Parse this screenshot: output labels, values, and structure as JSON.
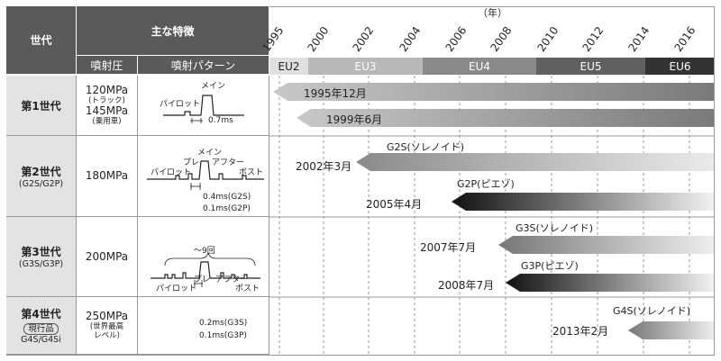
{
  "header": {
    "generation": "世代",
    "main_features": "主な特徴",
    "injection_pressure": "噴射圧",
    "injection_pattern": "噴射パターン",
    "year_unit": "（年）"
  },
  "years": [
    "1995",
    "2000",
    "2002",
    "2004",
    "2006",
    "2008",
    "2010",
    "2012",
    "2014",
    "2016"
  ],
  "eu": [
    {
      "label": "EU2",
      "color": "#e0e0e0",
      "text": "#222"
    },
    {
      "label": "EU3",
      "color": "#b8b8b8",
      "text": "#fff"
    },
    {
      "label": "EU4",
      "color": "#8a8a8a",
      "text": "#fff"
    },
    {
      "label": "EU5",
      "color": "#606060",
      "text": "#fff"
    },
    {
      "label": "EU6",
      "color": "#333333",
      "text": "#fff"
    }
  ],
  "generations": [
    {
      "title": "第1世代",
      "sub": "",
      "pressure1": "120MPa",
      "pressure1_note": "(トラック)",
      "pressure2": "145MPa",
      "pressure2_note": "(乗用車)"
    },
    {
      "title": "第2世代",
      "sub": "(G2S/G2P)",
      "pressure1": "180MPa"
    },
    {
      "title": "第3世代",
      "sub": "(G3S/G3P)",
      "pressure1": "200MPa"
    },
    {
      "title": "第4世代",
      "sub1": "現行品",
      "sub2": "G4S/G4Si",
      "pressure1": "250MPa",
      "pressure1_note": "(世界最高",
      "pressure1_note2": "レベル)"
    }
  ],
  "patterns": {
    "gen1": {
      "main": "メイン",
      "pilot": "パイロット",
      "time": "0.7ms"
    },
    "gen2": {
      "main": "メイン",
      "pre": "プレ",
      "after": "アフター",
      "pilot": "パイロット",
      "post": "ポスト",
      "time1": "0.4ms(G2S)",
      "time2": "0.1ms(G2P)"
    },
    "gen3": {
      "count": "〜9回",
      "pre": "プレ",
      "after": "アフター",
      "pilot": "パイロット",
      "post": "ポスト",
      "time1": "0.2ms(G3S)",
      "time2": "0.1ms(G3P)"
    }
  },
  "arrows": [
    {
      "date": "1995年12月",
      "tech": ""
    },
    {
      "date": "1999年6月",
      "tech": ""
    },
    {
      "date": "2002年3月",
      "tech": "G2S(ソレノイド)"
    },
    {
      "date": "2005年4月",
      "tech": "G2P(ピエゾ)"
    },
    {
      "date": "2007年7月",
      "tech": "G3S(ソレノイド)"
    },
    {
      "date": "2008年7月",
      "tech": "G3P(ピエゾ)"
    },
    {
      "date": "2013年2月",
      "tech": "G4S(ソレノイド)"
    }
  ]
}
